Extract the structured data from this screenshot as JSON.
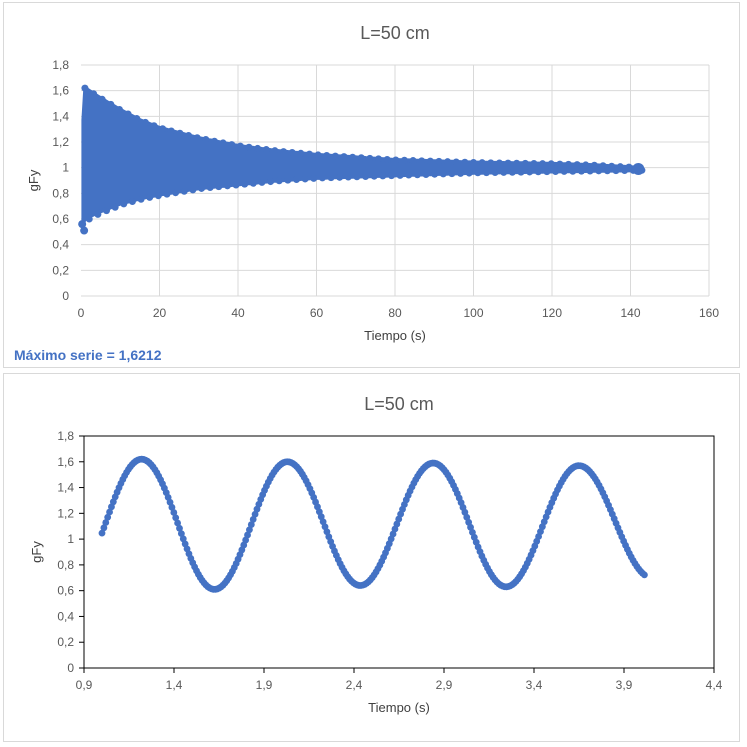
{
  "chart_data": [
    {
      "type": "scatter",
      "title": "L=50 cm",
      "xlabel": "Tiempo (s)",
      "ylabel": "gFy",
      "xlim": [
        0,
        160
      ],
      "ylim": [
        0,
        1.8
      ],
      "xticks": [
        "0",
        "20",
        "40",
        "60",
        "80",
        "100",
        "120",
        "140",
        "160"
      ],
      "yticks": [
        "0",
        "0,2",
        "0,4",
        "0,6",
        "0,8",
        "1",
        "1,2",
        "1,4",
        "1,6",
        "1,8"
      ],
      "grid": true,
      "series_color": "#4472c4",
      "envelope": {
        "t": [
          0,
          1,
          2,
          5,
          10,
          15,
          20,
          30,
          40,
          50,
          60,
          70,
          80,
          90,
          100,
          110,
          120,
          130,
          142
        ],
        "upper": [
          1.0,
          1.62,
          1.6,
          1.54,
          1.45,
          1.37,
          1.31,
          1.23,
          1.17,
          1.13,
          1.1,
          1.08,
          1.06,
          1.05,
          1.04,
          1.035,
          1.03,
          1.02,
          1.0
        ],
        "lower": [
          0.55,
          0.6,
          0.62,
          0.66,
          0.72,
          0.76,
          0.79,
          0.84,
          0.87,
          0.9,
          0.92,
          0.93,
          0.94,
          0.95,
          0.96,
          0.965,
          0.97,
          0.975,
          0.98
        ]
      },
      "outliers": [
        [
          0.3,
          0.56
        ],
        [
          0.8,
          0.51
        ]
      ],
      "annotation": "Máximo serie = 1,6212"
    },
    {
      "type": "scatter",
      "title": "L=50 cm",
      "xlabel": "Tiempo (s)",
      "ylabel": "gFy",
      "xlim": [
        0.9,
        4.4
      ],
      "ylim": [
        0,
        1.8
      ],
      "xticks": [
        "0,9",
        "1,4",
        "1,9",
        "2,4",
        "2,9",
        "3,4",
        "3,9",
        "4,4"
      ],
      "yticks": [
        "0",
        "0,2",
        "0,4",
        "0,6",
        "0,8",
        "1",
        "1,2",
        "1,4",
        "1,6",
        "1,8"
      ],
      "grid": false,
      "series_color": "#4472c4",
      "oscillation": {
        "t_start": 1.0,
        "t_end": 4.02,
        "period": 0.81,
        "first_peak_t": 1.22,
        "peaks": [
          1.62,
          1.6,
          1.59,
          1.57
        ],
        "troughs": [
          0.61,
          0.64,
          0.63,
          0.7
        ]
      }
    }
  ]
}
